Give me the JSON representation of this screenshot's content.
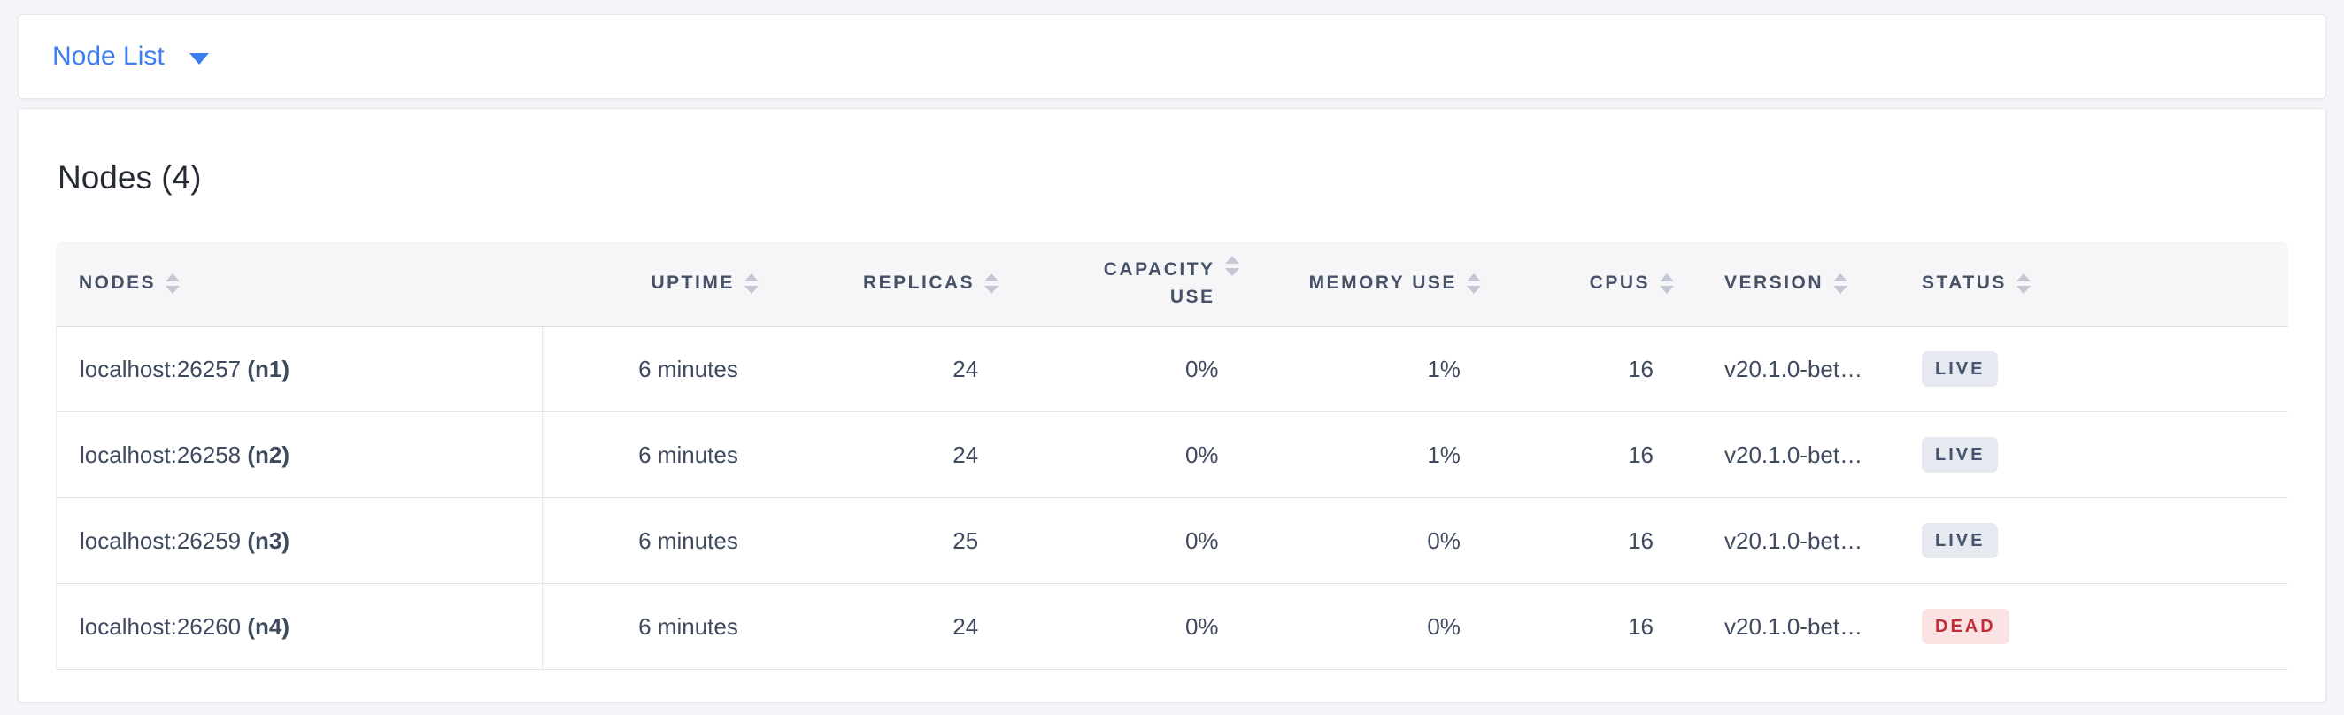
{
  "toolbar": {
    "dropdown_label": "Node List"
  },
  "panel": {
    "title": "Nodes (4)"
  },
  "table": {
    "columns": [
      {
        "key": "nodes",
        "label": "NODES",
        "align": "left"
      },
      {
        "key": "uptime",
        "label": "UPTIME",
        "align": "right"
      },
      {
        "key": "replicas",
        "label": "REPLICAS",
        "align": "right"
      },
      {
        "key": "capacity_use",
        "label": "CAPACITY USE",
        "align": "right"
      },
      {
        "key": "memory_use",
        "label": "MEMORY USE",
        "align": "right"
      },
      {
        "key": "cpus",
        "label": "CPUS",
        "align": "right"
      },
      {
        "key": "version",
        "label": "VERSION",
        "align": "left"
      },
      {
        "key": "status",
        "label": "STATUS",
        "align": "left"
      }
    ],
    "rows": [
      {
        "node_address": "localhost:26257",
        "node_id": "(n1)",
        "uptime": "6 minutes",
        "replicas": "24",
        "capacity_use": "0%",
        "memory_use": "1%",
        "cpus": "16",
        "version": "v20.1.0-bet…",
        "status": "LIVE"
      },
      {
        "node_address": "localhost:26258",
        "node_id": "(n2)",
        "uptime": "6 minutes",
        "replicas": "24",
        "capacity_use": "0%",
        "memory_use": "1%",
        "cpus": "16",
        "version": "v20.1.0-bet…",
        "status": "LIVE"
      },
      {
        "node_address": "localhost:26259",
        "node_id": "(n3)",
        "uptime": "6 minutes",
        "replicas": "25",
        "capacity_use": "0%",
        "memory_use": "0%",
        "cpus": "16",
        "version": "v20.1.0-bet…",
        "status": "LIVE"
      },
      {
        "node_address": "localhost:26260",
        "node_id": "(n4)",
        "uptime": "6 minutes",
        "replicas": "24",
        "capacity_use": "0%",
        "memory_use": "0%",
        "cpus": "16",
        "version": "v20.1.0-bet…",
        "status": "DEAD"
      }
    ]
  },
  "colors": {
    "accent_blue": "#3d7df0",
    "page_background": "#f4f5f9",
    "header_text": "#475266",
    "body_text": "#3f4a5f",
    "live_badge_bg": "#e7e9f0",
    "live_badge_text": "#475470",
    "dead_badge_bg": "#fbe3e3",
    "dead_badge_text": "#c02d36"
  }
}
